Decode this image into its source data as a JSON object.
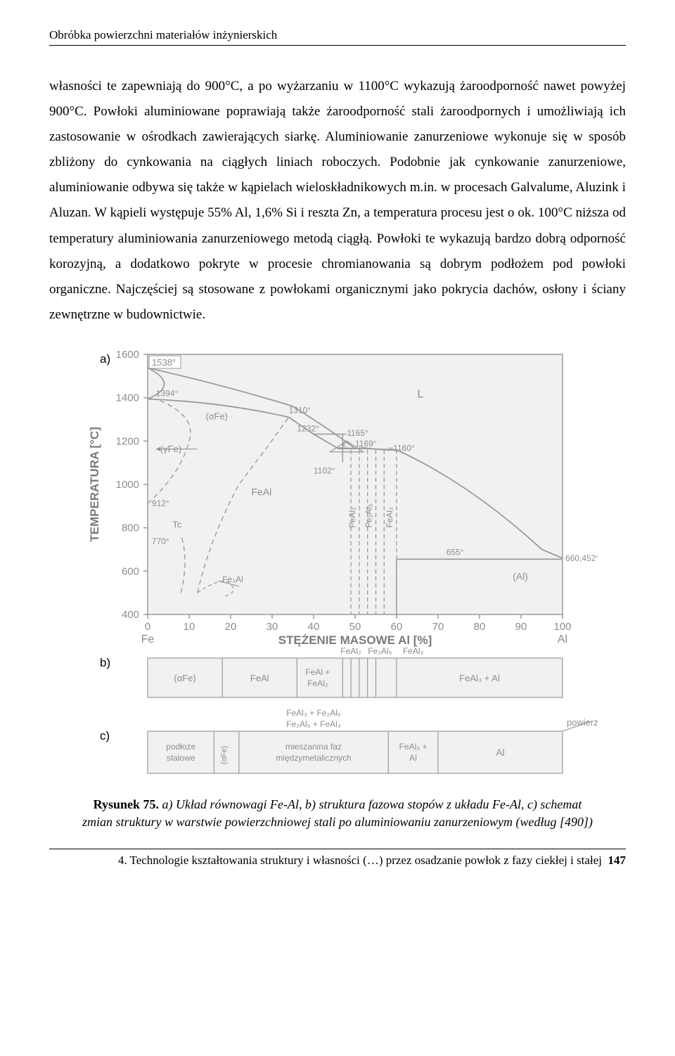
{
  "header": "Obróbka powierzchni materiałów inżynierskich",
  "body": "własności te zapewniają do 900°C, a po wyżarzaniu w 1100°C wykazują żaroodporność nawet powyżej 900°C. Powłoki aluminiowane poprawiają także żaroodporność stali żaroodpornych i umożliwiają ich zastosowanie w ośrodkach zawierających siarkę. Aluminiowanie zanurzeniowe wykonuje się w sposób zbliżony do cynkowania na ciągłych liniach roboczych. Podobnie jak cynkowanie zanurzeniowe, aluminiowanie odbywa się także w kąpielach wieloskładnikowych m.in. w procesach Galvalume, Aluzink i Aluzan. W kąpieli występuje 55% Al, 1,6% Si i reszta Zn, a temperatura procesu jest o ok. 100°C niższa od temperatury aluminiowania zanurzeniowego metodą ciągłą. Powłoki te wykazują bardzo dobrą odporność korozyjną, a dodatkowo pokryte w  procesie chromianowania są dobrym podłożem pod powłoki organiczne. Najczęściej są stosowane z powłokami organicznymi jako pokrycia dachów, osłony i ściany zewnętrzne w budownictwie.",
  "figure": {
    "colors": {
      "axis": "#9a9a9a",
      "line": "#9a9a9a",
      "dash": "#9a9a9a",
      "text": "#8d8d8d",
      "bold_text": "#7a7a7a",
      "fill": "#f1f1f1",
      "fill2": "#e8e8e8",
      "bg": "#ffffff"
    },
    "panel_a": {
      "label": "a)",
      "y_label": "TEMPERATURA [°C]",
      "y_ticks": [
        400,
        600,
        800,
        1000,
        1200,
        1400,
        1600
      ],
      "x_label": "STĘŻENIE MASOWE Al [%]",
      "x_ticks": [
        0,
        10,
        20,
        30,
        40,
        50,
        60,
        70,
        80,
        90,
        100
      ],
      "x_left": "Fe",
      "x_right": "Al",
      "temps": [
        "1538°",
        "1394°",
        "1310°",
        "1232°",
        "1165°",
        "1169°",
        "~1160°",
        "1102°",
        "912°",
        "770°",
        "655°",
        "660,452°"
      ],
      "phases": {
        "L": "L",
        "alpha": "(αFe)",
        "gamma": "(γFe)",
        "FeAl": "FeAl",
        "FeAl2": "FeAl₂",
        "Fe2Al5": "Fe₂Al₅",
        "FeAl3": "FeAl₃",
        "Fe3Al": "Fe₃Al",
        "Al": "(Al)",
        "Tc": "Tc"
      }
    },
    "panel_b": {
      "label": "b)",
      "top_labels": [
        "FeAl₂",
        "Fe₂Al₅",
        "FeAl₃"
      ],
      "cells": [
        "(αFe)",
        "FeAl",
        "FeAl + FeAl₂",
        "FeAl₃ + Al"
      ]
    },
    "panel_c": {
      "label": "c)",
      "top_labels": [
        "FeAl₃ + Fe₂Al₅",
        "Fe₂Al₅ + FeAl₃"
      ],
      "cells": [
        "podłoże stalowe",
        "(αFe)",
        "mieszanina faz międzymetalicznych",
        "FeAl₃ + Al",
        "Al"
      ],
      "side": "powierzchnia"
    }
  },
  "caption": {
    "num": "Rysunek 75.",
    "text": " a) Układ równowagi Fe-Al,  b) struktura fazowa stopów z układu Fe-Al, c)  schemat zmian struktury w warstwie powierzchniowej stali po aluminiowaniu zanurzeniowym (według [490])"
  },
  "footer": {
    "text": "4. Technologie kształtowania struktury i własności (…) przez osadzanie powłok z fazy ciekłej i stałej",
    "page": "147"
  }
}
